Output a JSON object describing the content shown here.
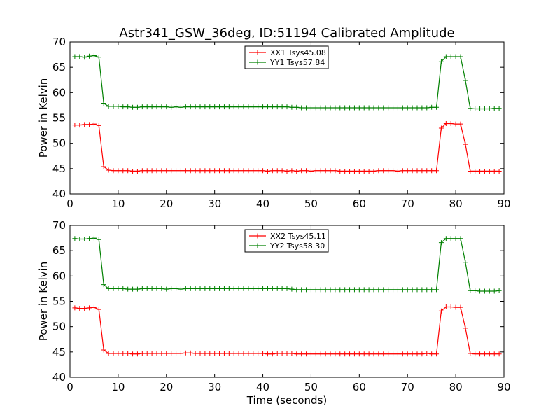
{
  "chart_data": [
    {
      "type": "line",
      "title": "Astr341_GSW_36deg, ID:51194 Calibrated Amplitude",
      "xlabel": "",
      "ylabel": "Power in Kelvin",
      "xlim": [
        0,
        90
      ],
      "ylim": [
        40,
        70
      ],
      "xticks": [
        "0",
        "10",
        "20",
        "30",
        "40",
        "50",
        "60",
        "70",
        "80",
        "90"
      ],
      "yticks": [
        "40",
        "45",
        "50",
        "55",
        "60",
        "65",
        "70"
      ],
      "legend_position": "top-center",
      "grid": false,
      "x": [
        1,
        2,
        3,
        4,
        5,
        6,
        7,
        8,
        9,
        10,
        11,
        12,
        13,
        14,
        15,
        16,
        17,
        18,
        19,
        20,
        21,
        22,
        23,
        24,
        25,
        26,
        27,
        28,
        29,
        30,
        31,
        32,
        33,
        34,
        35,
        36,
        37,
        38,
        39,
        40,
        41,
        42,
        43,
        44,
        45,
        46,
        47,
        48,
        49,
        50,
        51,
        52,
        53,
        54,
        55,
        56,
        57,
        58,
        59,
        60,
        61,
        62,
        63,
        64,
        65,
        66,
        67,
        68,
        69,
        70,
        71,
        72,
        73,
        74,
        75,
        76,
        77,
        78,
        79,
        80,
        81,
        82,
        83,
        84,
        85,
        86,
        87,
        88,
        89
      ],
      "series": [
        {
          "name": "XX1 Tsys45.08",
          "color": "#ff0000",
          "values": [
            53.6,
            53.6,
            53.7,
            53.7,
            53.8,
            53.5,
            45.4,
            44.7,
            44.6,
            44.6,
            44.6,
            44.6,
            44.5,
            44.5,
            44.6,
            44.6,
            44.6,
            44.6,
            44.6,
            44.6,
            44.6,
            44.6,
            44.6,
            44.6,
            44.6,
            44.6,
            44.6,
            44.6,
            44.6,
            44.6,
            44.6,
            44.6,
            44.6,
            44.6,
            44.6,
            44.6,
            44.6,
            44.6,
            44.6,
            44.6,
            44.5,
            44.6,
            44.6,
            44.6,
            44.5,
            44.6,
            44.5,
            44.6,
            44.6,
            44.5,
            44.6,
            44.6,
            44.6,
            44.6,
            44.6,
            44.5,
            44.5,
            44.5,
            44.5,
            44.5,
            44.5,
            44.5,
            44.5,
            44.6,
            44.6,
            44.6,
            44.6,
            44.5,
            44.6,
            44.6,
            44.6,
            44.6,
            44.6,
            44.6,
            44.6,
            44.6,
            53.0,
            53.9,
            53.9,
            53.8,
            53.8,
            49.8,
            44.5,
            44.5,
            44.5,
            44.5,
            44.5,
            44.5,
            44.5
          ]
        },
        {
          "name": "YY1 Tsys57.84",
          "color": "#008000",
          "values": [
            67.1,
            67.1,
            67.0,
            67.2,
            67.3,
            67.0,
            57.9,
            57.3,
            57.3,
            57.3,
            57.2,
            57.2,
            57.1,
            57.1,
            57.2,
            57.2,
            57.2,
            57.2,
            57.2,
            57.2,
            57.1,
            57.2,
            57.1,
            57.2,
            57.2,
            57.2,
            57.2,
            57.2,
            57.2,
            57.2,
            57.2,
            57.2,
            57.2,
            57.2,
            57.2,
            57.2,
            57.2,
            57.2,
            57.2,
            57.2,
            57.2,
            57.2,
            57.2,
            57.2,
            57.2,
            57.1,
            57.1,
            57.0,
            57.0,
            57.0,
            57.0,
            57.0,
            57.0,
            57.0,
            57.0,
            57.0,
            57.0,
            57.0,
            57.0,
            57.0,
            57.0,
            57.0,
            57.0,
            57.0,
            57.0,
            57.0,
            57.0,
            57.0,
            57.0,
            57.0,
            57.0,
            57.0,
            57.0,
            57.0,
            57.1,
            57.1,
            66.1,
            67.1,
            67.1,
            67.1,
            67.1,
            62.4,
            56.9,
            56.8,
            56.8,
            56.8,
            56.8,
            56.9,
            56.9
          ]
        }
      ]
    },
    {
      "type": "line",
      "title": "",
      "xlabel": "Time (seconds)",
      "ylabel": "Power in Kelvin",
      "xlim": [
        0,
        90
      ],
      "ylim": [
        40,
        70
      ],
      "xticks": [
        "0",
        "10",
        "20",
        "30",
        "40",
        "50",
        "60",
        "70",
        "80",
        "90"
      ],
      "yticks": [
        "40",
        "45",
        "50",
        "55",
        "60",
        "65",
        "70"
      ],
      "legend_position": "top-center",
      "grid": false,
      "x": [
        1,
        2,
        3,
        4,
        5,
        6,
        7,
        8,
        9,
        10,
        11,
        12,
        13,
        14,
        15,
        16,
        17,
        18,
        19,
        20,
        21,
        22,
        23,
        24,
        25,
        26,
        27,
        28,
        29,
        30,
        31,
        32,
        33,
        34,
        35,
        36,
        37,
        38,
        39,
        40,
        41,
        42,
        43,
        44,
        45,
        46,
        47,
        48,
        49,
        50,
        51,
        52,
        53,
        54,
        55,
        56,
        57,
        58,
        59,
        60,
        61,
        62,
        63,
        64,
        65,
        66,
        67,
        68,
        69,
        70,
        71,
        72,
        73,
        74,
        75,
        76,
        77,
        78,
        79,
        80,
        81,
        82,
        83,
        84,
        85,
        86,
        87,
        88,
        89
      ],
      "series": [
        {
          "name": "XX2 Tsys45.11",
          "color": "#ff0000",
          "values": [
            53.7,
            53.6,
            53.6,
            53.7,
            53.8,
            53.4,
            45.4,
            44.7,
            44.7,
            44.7,
            44.7,
            44.7,
            44.6,
            44.6,
            44.7,
            44.7,
            44.7,
            44.7,
            44.7,
            44.7,
            44.7,
            44.7,
            44.7,
            44.8,
            44.8,
            44.7,
            44.7,
            44.7,
            44.7,
            44.7,
            44.7,
            44.7,
            44.7,
            44.7,
            44.7,
            44.7,
            44.7,
            44.7,
            44.7,
            44.7,
            44.6,
            44.6,
            44.7,
            44.7,
            44.7,
            44.7,
            44.6,
            44.6,
            44.6,
            44.6,
            44.6,
            44.6,
            44.6,
            44.6,
            44.6,
            44.6,
            44.6,
            44.6,
            44.6,
            44.6,
            44.6,
            44.6,
            44.6,
            44.6,
            44.6,
            44.6,
            44.6,
            44.6,
            44.6,
            44.6,
            44.6,
            44.6,
            44.6,
            44.7,
            44.6,
            44.6,
            53.1,
            53.9,
            53.9,
            53.8,
            53.8,
            49.7,
            44.7,
            44.6,
            44.6,
            44.6,
            44.6,
            44.6,
            44.6
          ]
        },
        {
          "name": "YY2 Tsys58.30",
          "color": "#008000",
          "values": [
            67.4,
            67.3,
            67.3,
            67.4,
            67.5,
            67.2,
            58.3,
            57.5,
            57.5,
            57.5,
            57.5,
            57.4,
            57.4,
            57.4,
            57.5,
            57.5,
            57.5,
            57.5,
            57.5,
            57.4,
            57.5,
            57.5,
            57.4,
            57.5,
            57.5,
            57.5,
            57.5,
            57.5,
            57.5,
            57.5,
            57.5,
            57.5,
            57.5,
            57.5,
            57.5,
            57.5,
            57.5,
            57.5,
            57.5,
            57.5,
            57.5,
            57.5,
            57.5,
            57.5,
            57.5,
            57.4,
            57.3,
            57.3,
            57.3,
            57.3,
            57.3,
            57.3,
            57.3,
            57.3,
            57.3,
            57.3,
            57.3,
            57.3,
            57.3,
            57.3,
            57.3,
            57.3,
            57.3,
            57.3,
            57.3,
            57.3,
            57.3,
            57.3,
            57.3,
            57.3,
            57.3,
            57.3,
            57.3,
            57.3,
            57.3,
            57.3,
            66.6,
            67.4,
            67.4,
            67.4,
            67.4,
            62.7,
            57.1,
            57.1,
            57.0,
            57.0,
            57.0,
            57.0,
            57.1
          ]
        }
      ]
    }
  ]
}
